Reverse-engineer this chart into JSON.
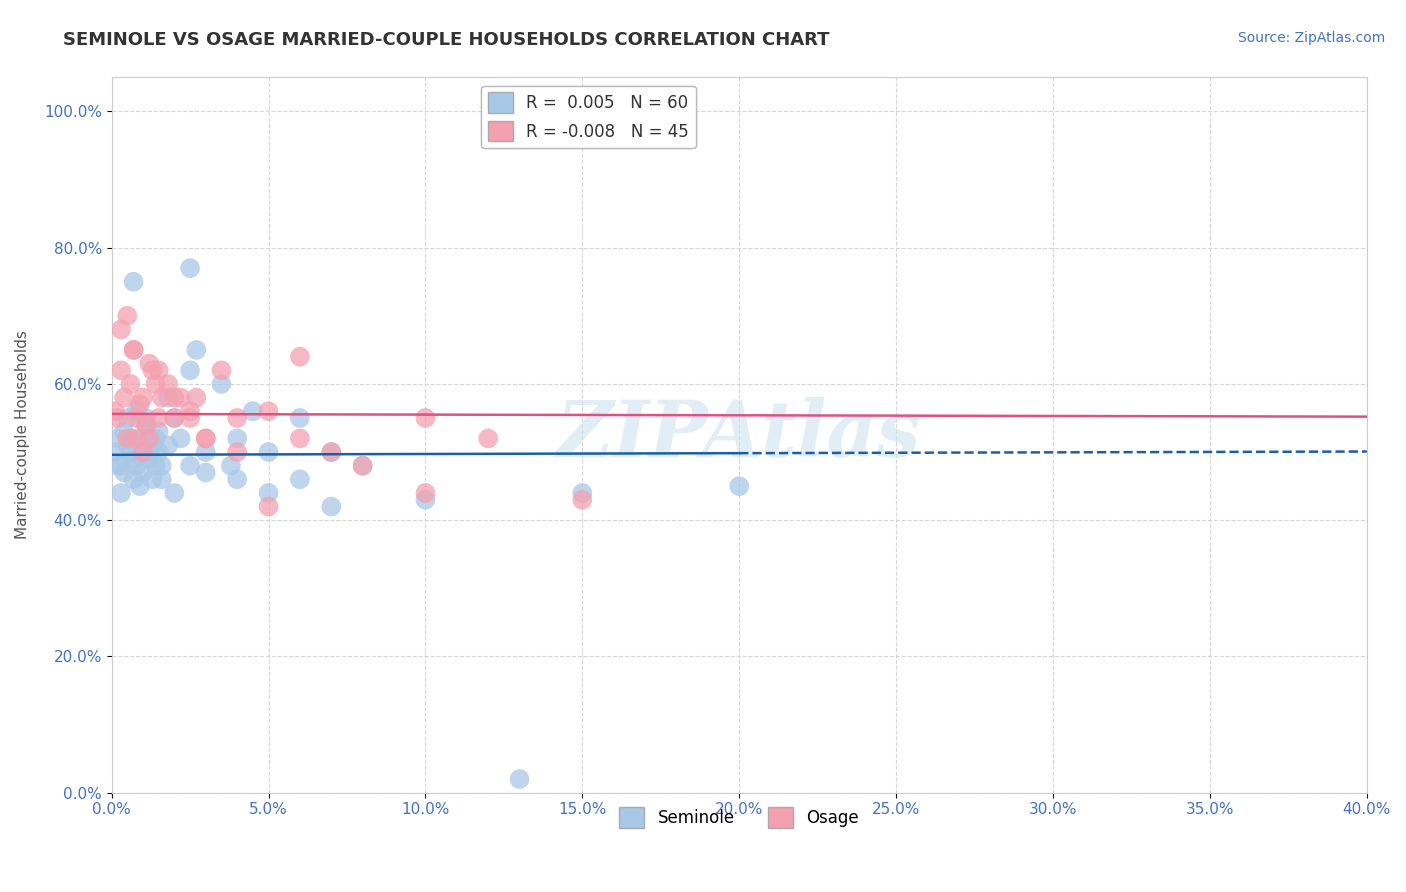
{
  "title": "SEMINOLE VS OSAGE MARRIED-COUPLE HOUSEHOLDS CORRELATION CHART",
  "source_text": "Source: ZipAtlas.com",
  "ylabel": "Married-couple Households",
  "xlim": [
    0.0,
    0.4
  ],
  "ylim": [
    0.0,
    1.05
  ],
  "xticks": [
    0.0,
    0.05,
    0.1,
    0.15,
    0.2,
    0.25,
    0.3,
    0.35,
    0.4
  ],
  "yticks": [
    0.0,
    0.2,
    0.4,
    0.6,
    0.8,
    1.0
  ],
  "seminole_color": "#a8c8e8",
  "osage_color": "#f4a0b0",
  "trend_seminole_color": "#1a5fa8",
  "trend_osage_color": "#e05080",
  "background_color": "#ffffff",
  "grid_color": "#cccccc",
  "watermark": "ZIPAtlas",
  "legend_r_seminole": "R =  0.005",
  "legend_n_seminole": "N = 60",
  "legend_r_osage": "R = -0.008",
  "legend_n_osage": "N = 45",
  "seminole_x": [
    0.001,
    0.002,
    0.003,
    0.004,
    0.005,
    0.006,
    0.007,
    0.008,
    0.009,
    0.01,
    0.011,
    0.012,
    0.013,
    0.014,
    0.015,
    0.016,
    0.018,
    0.02,
    0.022,
    0.025,
    0.027,
    0.03,
    0.035,
    0.038,
    0.04,
    0.045,
    0.05,
    0.06,
    0.07,
    0.08,
    0.002,
    0.003,
    0.004,
    0.005,
    0.006,
    0.007,
    0.008,
    0.009,
    0.01,
    0.011,
    0.012,
    0.013,
    0.014,
    0.015,
    0.016,
    0.018,
    0.02,
    0.025,
    0.03,
    0.04,
    0.05,
    0.06,
    0.07,
    0.1,
    0.15,
    0.2,
    0.007,
    0.012,
    0.025,
    0.13
  ],
  "seminole_y": [
    0.5,
    0.52,
    0.48,
    0.53,
    0.55,
    0.5,
    0.49,
    0.56,
    0.45,
    0.52,
    0.54,
    0.5,
    0.51,
    0.48,
    0.53,
    0.46,
    0.58,
    0.55,
    0.52,
    0.62,
    0.65,
    0.5,
    0.6,
    0.48,
    0.52,
    0.56,
    0.5,
    0.55,
    0.5,
    0.48,
    0.48,
    0.44,
    0.47,
    0.51,
    0.52,
    0.46,
    0.48,
    0.5,
    0.47,
    0.55,
    0.49,
    0.46,
    0.52,
    0.5,
    0.48,
    0.51,
    0.44,
    0.48,
    0.47,
    0.46,
    0.44,
    0.46,
    0.42,
    0.43,
    0.44,
    0.45,
    0.75,
    0.5,
    0.77,
    0.02
  ],
  "osage_x": [
    0.001,
    0.002,
    0.003,
    0.004,
    0.005,
    0.006,
    0.007,
    0.008,
    0.009,
    0.01,
    0.011,
    0.012,
    0.013,
    0.014,
    0.015,
    0.016,
    0.018,
    0.02,
    0.022,
    0.025,
    0.027,
    0.03,
    0.035,
    0.04,
    0.05,
    0.06,
    0.07,
    0.08,
    0.1,
    0.12,
    0.003,
    0.005,
    0.007,
    0.01,
    0.012,
    0.015,
    0.02,
    0.025,
    0.03,
    0.04,
    0.05,
    0.1,
    0.15,
    0.008,
    0.06
  ],
  "osage_y": [
    0.56,
    0.55,
    0.62,
    0.58,
    0.52,
    0.6,
    0.65,
    0.55,
    0.57,
    0.5,
    0.54,
    0.52,
    0.62,
    0.6,
    0.55,
    0.58,
    0.6,
    0.55,
    0.58,
    0.56,
    0.58,
    0.52,
    0.62,
    0.55,
    0.56,
    0.52,
    0.5,
    0.48,
    0.55,
    0.52,
    0.68,
    0.7,
    0.65,
    0.58,
    0.63,
    0.62,
    0.58,
    0.55,
    0.52,
    0.5,
    0.42,
    0.44,
    0.43,
    0.52,
    0.64
  ],
  "trend_seminole_y_intercept": 0.496,
  "trend_seminole_slope": 0.012,
  "trend_seminole_solid_end": 0.2,
  "trend_osage_y_intercept": 0.556,
  "trend_osage_slope": -0.01
}
